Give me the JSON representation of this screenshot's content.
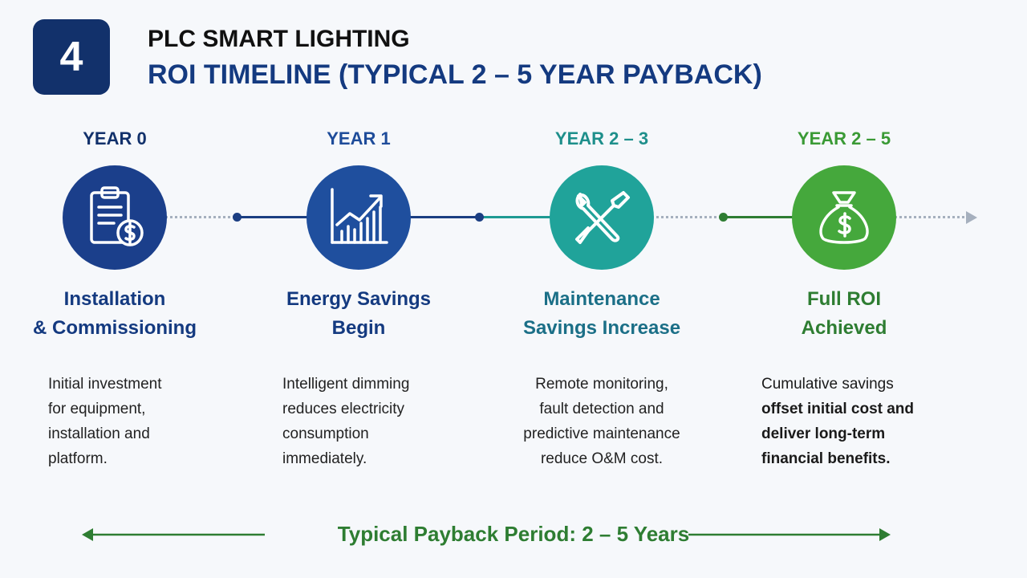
{
  "header": {
    "step_number": "4",
    "title_line1": "PLC SMART LIGHTING",
    "title_line2": "ROI TIMELINE (TYPICAL 2 – 5 YEAR PAYBACK)"
  },
  "colors": {
    "navy": "#12316b",
    "blue": "#1e4c9a",
    "teal": "#1e9a93",
    "green": "#3e9a3a",
    "dark_green": "#2e7d32"
  },
  "stages": [
    {
      "year": "YEAR 0",
      "icon": "clipboard-dollar-icon",
      "heading_line1": "Installation",
      "heading_line2": "& Commissioning",
      "desc": [
        "Initial investment",
        "for equipment,",
        "installation and",
        "platform."
      ]
    },
    {
      "year": "YEAR 1",
      "icon": "growth-chart-icon",
      "heading_line1": "Energy Savings",
      "heading_line2": "Begin",
      "desc": [
        "Intelligent dimming",
        "reduces electricity",
        "consumption",
        "immediately."
      ]
    },
    {
      "year": "YEAR 2 – 3",
      "icon": "wrench-screwdriver-icon",
      "heading_line1": "Maintenance",
      "heading_line2": "Savings Increase",
      "desc": [
        "Remote monitoring,",
        "fault detection and",
        "predictive maintenance",
        "reduce O&M cost."
      ]
    },
    {
      "year": "YEAR 2 – 5",
      "icon": "money-bag-icon",
      "heading_line1": "Full ROI",
      "heading_line2": "Achieved",
      "desc": [
        "Cumulative savings",
        "offset initial cost and",
        "deliver long-term",
        "financial benefits."
      ]
    }
  ],
  "footer": {
    "payback_label": "Typical Payback Period: 2 – 5 Years"
  }
}
